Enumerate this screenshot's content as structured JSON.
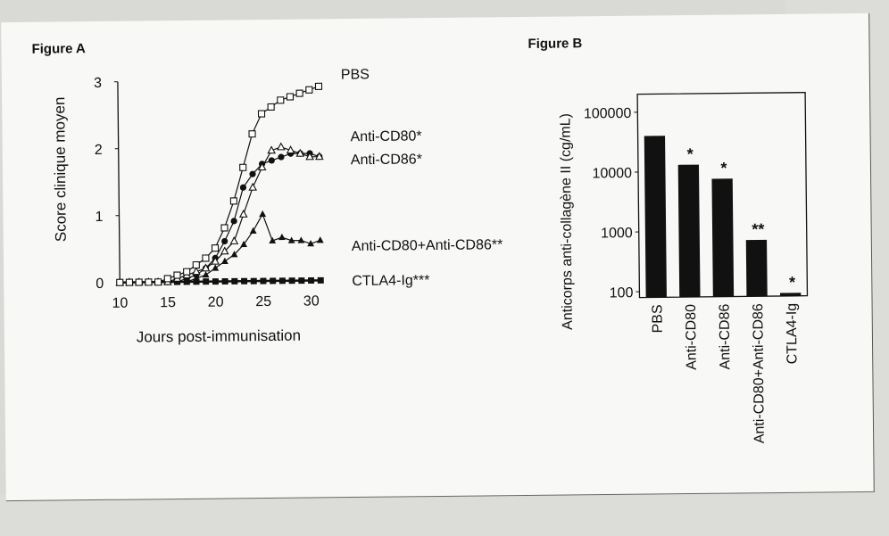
{
  "figure_a": {
    "caption": "Figure A",
    "chart_data": {
      "type": "line",
      "xlabel": "Jours post-immunisation",
      "ylabel": "Score clinique moyen",
      "xlim": [
        10,
        31
      ],
      "ylim": [
        0,
        3
      ],
      "xticks": [
        10,
        15,
        20,
        25,
        30
      ],
      "yticks": [
        0,
        1,
        2,
        3
      ],
      "x": [
        10,
        11,
        12,
        13,
        14,
        15,
        16,
        17,
        18,
        19,
        20,
        21,
        22,
        23,
        24,
        25,
        26,
        27,
        28,
        29,
        30,
        31
      ],
      "series": [
        {
          "name": "PBS",
          "marker": "open-square",
          "values": [
            0,
            0,
            0,
            0,
            0,
            0.05,
            0.1,
            0.15,
            0.25,
            0.35,
            0.5,
            0.8,
            1.2,
            1.7,
            2.2,
            2.5,
            2.6,
            2.7,
            2.75,
            2.8,
            2.85,
            2.9
          ]
        },
        {
          "name": "Anti-CD80*",
          "marker": "open-triangle",
          "values": [
            0,
            0,
            0,
            0,
            0,
            0,
            0.05,
            0.1,
            0.15,
            0.2,
            0.3,
            0.45,
            0.6,
            1.0,
            1.4,
            1.7,
            1.95,
            2.0,
            1.95,
            1.9,
            1.85,
            1.85
          ]
        },
        {
          "name": "Anti-CD86*",
          "marker": "filled-circle",
          "values": [
            0,
            0,
            0,
            0,
            0,
            0,
            0,
            0.05,
            0.1,
            0.2,
            0.35,
            0.6,
            0.9,
            1.4,
            1.6,
            1.75,
            1.8,
            1.85,
            1.9,
            1.9,
            1.9,
            1.85
          ]
        },
        {
          "name": "Anti-CD80+Anti-CD86**",
          "marker": "filled-triangle",
          "values": [
            0,
            0,
            0,
            0,
            0,
            0,
            0,
            0,
            0.05,
            0.1,
            0.2,
            0.3,
            0.4,
            0.55,
            0.75,
            1.0,
            0.6,
            0.65,
            0.6,
            0.6,
            0.55,
            0.6
          ]
        },
        {
          "name": "CTLA4-Ig***",
          "marker": "filled-square",
          "values": [
            0,
            0,
            0,
            0,
            0,
            0,
            0,
            0,
            0,
            0,
            0,
            0,
            0,
            0,
            0,
            0,
            0,
            0,
            0,
            0,
            0,
            0
          ]
        }
      ]
    }
  },
  "figure_b": {
    "caption": "Figure B",
    "chart_data": {
      "type": "bar",
      "scale": "log",
      "ylabel": "Anticorps anti-collagène II (cg/mL)",
      "ylim": [
        80,
        200000
      ],
      "yticks": [
        100,
        1000,
        10000,
        100000
      ],
      "ytick_labels": [
        "100",
        "1000",
        "10000",
        "100000"
      ],
      "categories": [
        "PBS",
        "Anti-CD80",
        "Anti-CD86",
        "Anti-CD80+Anti-CD86",
        "CTLA4-Ig"
      ],
      "values": [
        40000,
        13000,
        7500,
        700,
        90
      ],
      "annotations": [
        "",
        "*",
        "*",
        "**",
        "*"
      ]
    }
  }
}
